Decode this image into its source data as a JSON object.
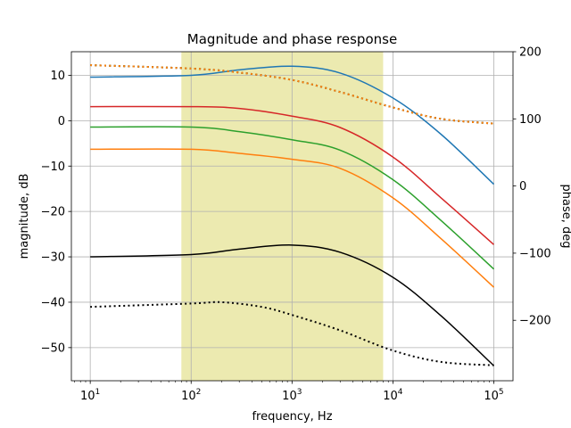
{
  "chart_data": {
    "type": "line",
    "title": "Magnitude and phase response",
    "xlabel": "frequency, Hz",
    "ylabel": "magnitude, dB",
    "y2label": "phase, deg",
    "xscale": "log",
    "xlim": [
      6.5,
      155000
    ],
    "ylim": [
      -57.3,
      15.2
    ],
    "y2lim": [
      -290,
      200
    ],
    "grid": true,
    "shaded_band": {
      "x": [
        80,
        8000
      ],
      "color": "#e6e396"
    },
    "xticks": [
      {
        "value": 10,
        "base": "10",
        "exp": "1"
      },
      {
        "value": 100,
        "base": "10",
        "exp": "2"
      },
      {
        "value": 1000,
        "base": "10",
        "exp": "3"
      },
      {
        "value": 10000,
        "base": "10",
        "exp": "4"
      },
      {
        "value": 100000,
        "base": "10",
        "exp": "5"
      }
    ],
    "yticks": [
      {
        "value": 10,
        "label": "10"
      },
      {
        "value": 0,
        "label": "0"
      },
      {
        "value": -10,
        "label": "−10"
      },
      {
        "value": -20,
        "label": "−20"
      },
      {
        "value": -30,
        "label": "−30"
      },
      {
        "value": -40,
        "label": "−40"
      },
      {
        "value": -50,
        "label": "−50"
      }
    ],
    "y2ticks": [
      {
        "value": 200,
        "label": "200"
      },
      {
        "value": 100,
        "label": "100"
      },
      {
        "value": 0,
        "label": "0"
      },
      {
        "value": -100,
        "label": "−100"
      },
      {
        "value": -200,
        "label": "−200"
      }
    ],
    "series": [
      {
        "axis": "left",
        "color": "#1f77b4",
        "style": "solid",
        "points": [
          [
            10,
            9.6
          ],
          [
            100,
            10.0
          ],
          [
            300,
            11.2
          ],
          [
            1000,
            12.0
          ],
          [
            3000,
            10.5
          ],
          [
            10000,
            5.0
          ],
          [
            30000,
            -3.0
          ],
          [
            100000,
            -14.0
          ]
        ]
      },
      {
        "axis": "left",
        "color": "#d62728",
        "style": "solid",
        "points": [
          [
            10,
            3.1
          ],
          [
            100,
            3.1
          ],
          [
            300,
            2.7
          ],
          [
            1000,
            1.0
          ],
          [
            3000,
            -1.5
          ],
          [
            10000,
            -8.0
          ],
          [
            30000,
            -17.0
          ],
          [
            100000,
            -27.3
          ]
        ]
      },
      {
        "axis": "left",
        "color": "#2ca02c",
        "style": "solid",
        "points": [
          [
            10,
            -1.4
          ],
          [
            100,
            -1.4
          ],
          [
            300,
            -2.4
          ],
          [
            1000,
            -4.2
          ],
          [
            3000,
            -6.5
          ],
          [
            10000,
            -13.0
          ],
          [
            30000,
            -22.0
          ],
          [
            100000,
            -32.7
          ]
        ]
      },
      {
        "axis": "left",
        "color": "#ff7f0e",
        "style": "solid",
        "points": [
          [
            10,
            -6.3
          ],
          [
            100,
            -6.3
          ],
          [
            300,
            -7.2
          ],
          [
            1000,
            -8.5
          ],
          [
            3000,
            -10.5
          ],
          [
            10000,
            -17.0
          ],
          [
            30000,
            -26.0
          ],
          [
            100000,
            -36.7
          ]
        ]
      },
      {
        "axis": "left",
        "color": "#000000",
        "style": "solid",
        "points": [
          [
            10,
            -30.0
          ],
          [
            100,
            -29.5
          ],
          [
            300,
            -28.3
          ],
          [
            1000,
            -27.4
          ],
          [
            3000,
            -29.0
          ],
          [
            10000,
            -34.5
          ],
          [
            30000,
            -43.0
          ],
          [
            100000,
            -54.0
          ]
        ]
      },
      {
        "axis": "right",
        "color": "#1f77b4",
        "style": "dotted",
        "points": [
          [
            10,
            180
          ],
          [
            100,
            175
          ],
          [
            300,
            169
          ],
          [
            1000,
            158
          ],
          [
            3000,
            140
          ],
          [
            10000,
            117
          ],
          [
            30000,
            100
          ],
          [
            100000,
            93
          ]
        ]
      },
      {
        "axis": "right",
        "color": "#d62728",
        "style": "dotted",
        "points": [
          [
            10,
            180
          ],
          [
            100,
            175
          ],
          [
            300,
            169
          ],
          [
            1000,
            158
          ],
          [
            3000,
            140
          ],
          [
            10000,
            117
          ],
          [
            30000,
            100
          ],
          [
            100000,
            93
          ]
        ]
      },
      {
        "axis": "right",
        "color": "#2ca02c",
        "style": "dotted",
        "points": [
          [
            10,
            180
          ],
          [
            100,
            175
          ],
          [
            300,
            169
          ],
          [
            1000,
            158
          ],
          [
            3000,
            140
          ],
          [
            10000,
            117
          ],
          [
            30000,
            100
          ],
          [
            100000,
            93
          ]
        ]
      },
      {
        "axis": "right",
        "color": "#ff7f0e",
        "style": "dotted",
        "points": [
          [
            10,
            180
          ],
          [
            100,
            175
          ],
          [
            300,
            169
          ],
          [
            1000,
            158
          ],
          [
            3000,
            140
          ],
          [
            10000,
            117
          ],
          [
            30000,
            100
          ],
          [
            100000,
            93
          ]
        ]
      },
      {
        "axis": "right",
        "color": "#000000",
        "style": "dotted",
        "points": [
          [
            10,
            -180
          ],
          [
            100,
            -175
          ],
          [
            200,
            -173
          ],
          [
            500,
            -180
          ],
          [
            1000,
            -192
          ],
          [
            3000,
            -215
          ],
          [
            10000,
            -245
          ],
          [
            30000,
            -262
          ],
          [
            100000,
            -267
          ]
        ]
      }
    ]
  }
}
